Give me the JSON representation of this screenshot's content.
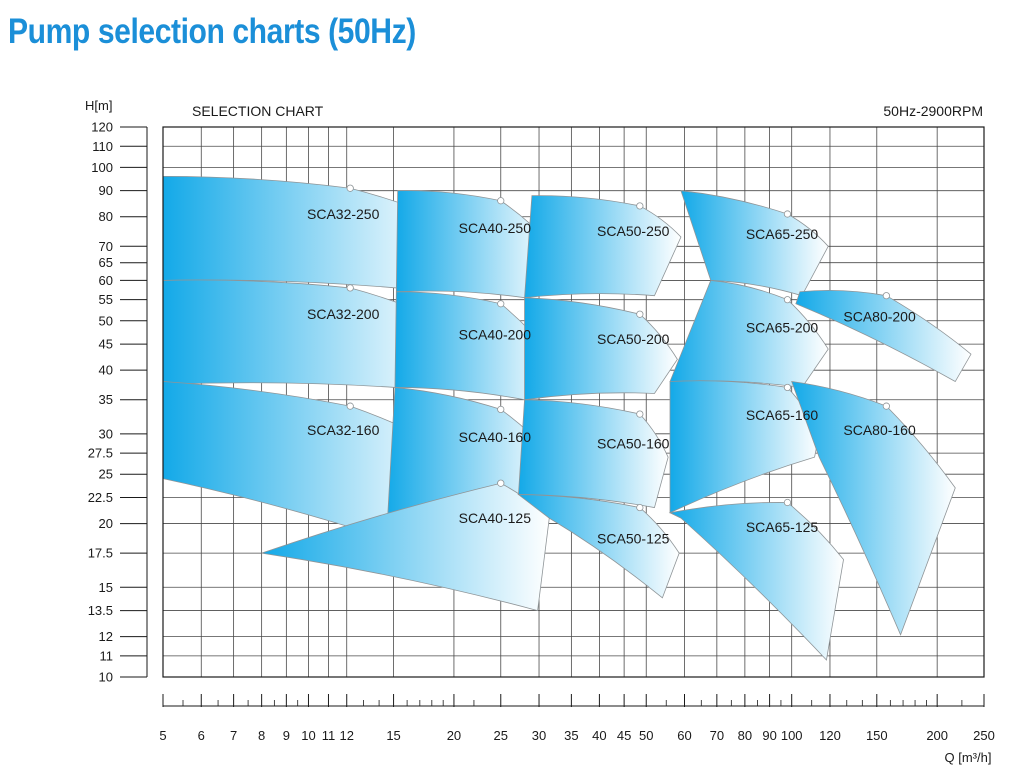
{
  "page": {
    "title": "Pump selection charts (50Hz)"
  },
  "chart_data": {
    "type": "area",
    "title": "SELECTION CHART",
    "subtitle": "50Hz-2900RPM",
    "ylabel": "H[m]",
    "xlabel": "Q [m³/h]",
    "x_scale": "log",
    "y_scale": "log",
    "xlim": [
      5,
      250
    ],
    "ylim": [
      10,
      120
    ],
    "x_ticks": [
      5,
      6,
      7,
      8,
      9,
      10,
      11,
      12,
      15,
      20,
      25,
      30,
      35,
      40,
      45,
      50,
      60,
      70,
      80,
      90,
      100,
      120,
      150,
      200,
      250
    ],
    "x_minor_ticks": [
      5.5,
      6.5,
      7.5,
      8.5,
      9.5,
      13,
      14,
      16,
      17,
      18,
      19,
      22,
      55,
      65,
      75,
      85,
      95,
      110,
      130,
      140,
      160,
      170,
      180,
      190,
      225
    ],
    "y_ticks": [
      10,
      11,
      12,
      13.5,
      15,
      17.5,
      20,
      22.5,
      25,
      27.5,
      30,
      35,
      40,
      45,
      50,
      55,
      60,
      65,
      70,
      80,
      90,
      100,
      110,
      120
    ],
    "y_tick_labels": [
      "10",
      "11",
      "12",
      "13.5",
      "15",
      "17.5",
      "20",
      "22.5",
      "25",
      "27.5",
      "30",
      "35",
      "40",
      "45",
      "50",
      "55",
      "60",
      "65",
      "70",
      "80",
      "90",
      "100",
      "110",
      "120"
    ],
    "grid": true,
    "colors": {
      "area_start": "#13a9e8",
      "area_end": "#ffffff",
      "outline": "#8f9598",
      "point_fill": "#ffffff",
      "title": "#1b8fd8"
    },
    "series": [
      {
        "name": "SCA32-250",
        "points": [
          [
            5,
            96
          ],
          [
            12.2,
            91
          ],
          [
            19,
            79
          ],
          [
            15.2,
            58
          ],
          [
            5,
            60
          ]
        ],
        "bep": [
          12.2,
          91
        ],
        "label_at": [
          11.8,
          81
        ]
      },
      {
        "name": "SCA32-200",
        "points": [
          [
            5,
            60
          ],
          [
            12.2,
            58
          ],
          [
            19,
            50
          ],
          [
            15.1,
            37
          ],
          [
            5,
            37.5
          ]
        ],
        "bep": [
          12.2,
          58
        ],
        "label_at": [
          11.8,
          51.5
        ]
      },
      {
        "name": "SCA32-160",
        "points": [
          [
            5,
            38
          ],
          [
            12.2,
            34
          ],
          [
            19.5,
            28
          ],
          [
            14.5,
            18.7
          ],
          [
            5,
            24.5
          ]
        ],
        "bep": [
          12.2,
          34
        ],
        "label_at": [
          11.8,
          30.5
        ]
      },
      {
        "name": "SCA40-250",
        "points": [
          [
            15.3,
            90
          ],
          [
            25,
            86
          ],
          [
            32,
            70
          ],
          [
            28,
            55.5
          ],
          [
            15.2,
            57
          ]
        ],
        "bep": [
          25,
          86
        ],
        "label_at": [
          24.3,
          76
        ]
      },
      {
        "name": "SCA40-200",
        "points": [
          [
            15.2,
            57
          ],
          [
            25,
            54
          ],
          [
            32.2,
            42.2
          ],
          [
            28,
            35
          ],
          [
            15.1,
            37
          ]
        ],
        "bep": [
          25,
          54
        ],
        "label_at": [
          24.3,
          47
        ]
      },
      {
        "name": "SCA40-160",
        "points": [
          [
            15.1,
            37
          ],
          [
            25,
            33.5
          ],
          [
            32,
            27
          ],
          [
            27.2,
            22.8
          ],
          [
            14.5,
            18.7
          ]
        ],
        "bep": [
          25,
          33.5
        ],
        "label_at": [
          24.3,
          29.6
        ]
      },
      {
        "name": "SCA40-125",
        "points": [
          [
            8,
            17.5
          ],
          [
            25,
            24
          ],
          [
            31.5,
            20.5
          ],
          [
            29.8,
            13.5
          ],
          [
            9.7,
            17.0
          ]
        ],
        "bep": [
          25,
          24
        ],
        "label_at": [
          24.3,
          20.5
        ]
      },
      {
        "name": "SCA50-250",
        "points": [
          [
            29,
            88
          ],
          [
            48.5,
            84
          ],
          [
            59,
            73
          ],
          [
            52,
            56
          ],
          [
            28,
            55.5
          ]
        ],
        "bep": [
          48.5,
          84
        ],
        "label_at": [
          47,
          75
        ]
      },
      {
        "name": "SCA50-200",
        "points": [
          [
            28,
            55.5
          ],
          [
            48.5,
            51.5
          ],
          [
            58,
            42
          ],
          [
            52,
            36
          ],
          [
            28,
            35
          ]
        ],
        "bep": [
          48.5,
          51.5
        ],
        "label_at": [
          47,
          46
        ]
      },
      {
        "name": "SCA50-160",
        "points": [
          [
            28,
            35
          ],
          [
            48.5,
            32.8
          ],
          [
            55.5,
            27
          ],
          [
            52,
            21.5
          ],
          [
            27.2,
            22.8
          ]
        ],
        "bep": [
          48.5,
          32.8
        ],
        "label_at": [
          47,
          28.7
        ]
      },
      {
        "name": "SCA50-125",
        "points": [
          [
            27.2,
            22.8
          ],
          [
            48.5,
            21.5
          ],
          [
            58.5,
            17.5
          ],
          [
            54,
            14.3
          ],
          [
            31.5,
            20.5
          ]
        ],
        "bep": [
          48.5,
          21.5
        ],
        "label_at": [
          47,
          18.7
        ]
      },
      {
        "name": "SCA65-250",
        "points": [
          [
            59,
            90
          ],
          [
            98,
            81
          ],
          [
            119,
            70
          ],
          [
            105,
            56
          ],
          [
            68,
            60
          ]
        ],
        "bep": [
          98,
          81
        ],
        "label_at": [
          95.5,
          74
        ]
      },
      {
        "name": "SCA65-200",
        "points": [
          [
            68,
            60
          ],
          [
            98,
            55
          ],
          [
            119,
            44
          ],
          [
            105,
            37
          ],
          [
            56,
            38
          ]
        ],
        "bep": [
          98,
          55
        ],
        "label_at": [
          95.5,
          48.5
        ]
      },
      {
        "name": "SCA65-160",
        "points": [
          [
            56,
            38
          ],
          [
            98,
            37
          ],
          [
            114,
            30
          ],
          [
            111.5,
            27
          ],
          [
            56,
            21
          ]
        ],
        "bep": [
          98,
          37
        ],
        "label_at": [
          95.5,
          32.7
        ]
      },
      {
        "name": "SCA65-125",
        "points": [
          [
            56,
            21
          ],
          [
            98,
            22
          ],
          [
            128,
            17
          ],
          [
            118,
            10.8
          ],
          [
            59,
            20.5
          ]
        ],
        "bep": [
          98,
          22
        ],
        "label_at": [
          95.5,
          19.7
        ]
      },
      {
        "name": "SCA80-200",
        "points": [
          [
            104,
            57
          ],
          [
            157,
            56
          ],
          [
            235,
            43
          ],
          [
            218,
            38
          ],
          [
            102,
            54
          ]
        ],
        "bep": [
          157,
          56
        ],
        "label_at": [
          152,
          51
        ]
      },
      {
        "name": "SCA80-160",
        "points": [
          [
            100,
            38
          ],
          [
            157,
            34
          ],
          [
            218,
            23.5
          ],
          [
            168,
            12.1
          ],
          [
            114,
            27
          ]
        ],
        "bep": [
          157,
          34
        ],
        "label_at": [
          152,
          30.5
        ]
      }
    ]
  }
}
